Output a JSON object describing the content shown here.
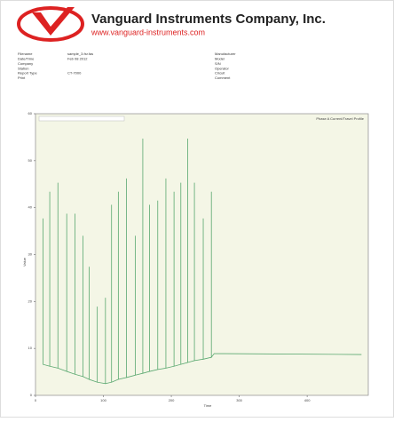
{
  "header": {
    "company": "Vanguard Instruments Company, Inc.",
    "website": "www.vanguard-instruments.com"
  },
  "fields_left": [
    {
      "label": "Filename",
      "value": "sample_3.fsr.fas"
    },
    {
      "label": "Date/Time",
      "value": "Feb 08 2012"
    },
    {
      "label": "Company"
    },
    {
      "label": "Station"
    },
    {
      "label": "Report Type",
      "value": "CT-7000"
    },
    {
      "label": "Print"
    }
  ],
  "fields_right": [
    {
      "label": "Manufacturer"
    },
    {
      "label": "Model"
    },
    {
      "label": "S/N"
    },
    {
      "label": "Operator"
    },
    {
      "label": "Circuit"
    },
    {
      "label": "Comment"
    }
  ],
  "chart_data": {
    "type": "line",
    "legend": "Phase A Current/Travel Profile",
    "x_label": "Time",
    "y_label": "Value",
    "xlim": [
      0,
      490
    ],
    "ylim": [
      0,
      60
    ],
    "xticks": [
      0,
      100,
      200,
      300,
      400
    ],
    "yticks": [
      0,
      10,
      20,
      30,
      40,
      50,
      60
    ],
    "color": "#5aa870",
    "x": [
      11,
      11,
      11,
      21,
      21,
      21,
      33,
      33,
      33,
      46,
      46,
      46,
      58,
      58,
      58,
      70,
      70,
      70,
      79,
      79,
      79,
      91,
      91,
      91,
      103,
      103,
      103,
      112,
      112,
      112,
      122,
      122,
      122,
      134,
      134,
      134,
      147,
      147,
      147,
      158,
      158,
      158,
      168,
      168,
      168,
      180,
      180,
      180,
      192,
      192,
      192,
      204,
      204,
      204,
      214,
      214,
      214,
      224,
      224,
      224,
      234,
      234,
      234,
      247,
      247,
      247,
      259,
      259,
      259,
      263,
      480
    ],
    "values": [
      6.6,
      37.7,
      6.6,
      6.2,
      43.4,
      6.2,
      5.8,
      45.3,
      5.8,
      5.1,
      38.7,
      5.1,
      4.5,
      38.7,
      4.5,
      4.0,
      34.0,
      4.0,
      3.4,
      27.4,
      3.4,
      2.8,
      18.9,
      2.8,
      2.5,
      20.8,
      2.5,
      2.8,
      40.6,
      2.8,
      3.4,
      43.4,
      3.4,
      3.8,
      46.2,
      3.8,
      4.3,
      34.0,
      4.3,
      4.7,
      54.7,
      4.7,
      5.1,
      40.6,
      5.1,
      5.5,
      41.5,
      5.5,
      5.8,
      46.2,
      5.8,
      6.2,
      43.4,
      6.2,
      6.6,
      45.3,
      6.6,
      7.0,
      54.7,
      7.0,
      7.4,
      45.3,
      7.4,
      7.7,
      37.7,
      7.7,
      8.1,
      43.4,
      8.1,
      8.9,
      8.7
    ]
  }
}
